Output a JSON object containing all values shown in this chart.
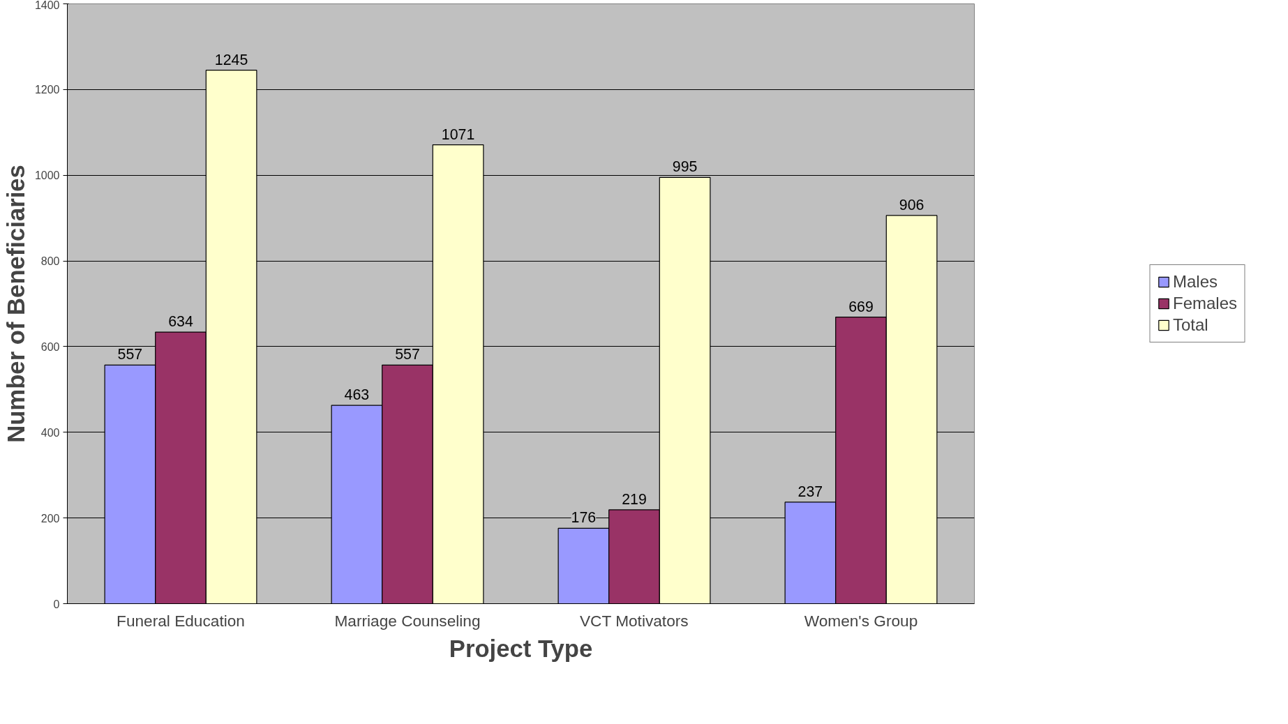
{
  "chart_data": {
    "type": "bar",
    "xlabel": "Project Type",
    "ylabel": "Number of Beneficiaries",
    "categories": [
      "Funeral Education",
      "Marriage Counseling",
      "VCT Motivators",
      "Women's Group"
    ],
    "series": [
      {
        "name": "Males",
        "color": "#9999ff",
        "values": [
          557,
          463,
          176,
          237
        ]
      },
      {
        "name": "Females",
        "color": "#993366",
        "values": [
          634,
          557,
          219,
          669
        ]
      },
      {
        "name": "Total",
        "color": "#ffffcc",
        "values": [
          1245,
          1071,
          995,
          906
        ]
      }
    ],
    "ylim": [
      0,
      1400
    ],
    "yticks": [
      0,
      200,
      400,
      600,
      800,
      1000,
      1200,
      1400
    ],
    "grid": "y",
    "legend": "right",
    "data_labels": true
  }
}
